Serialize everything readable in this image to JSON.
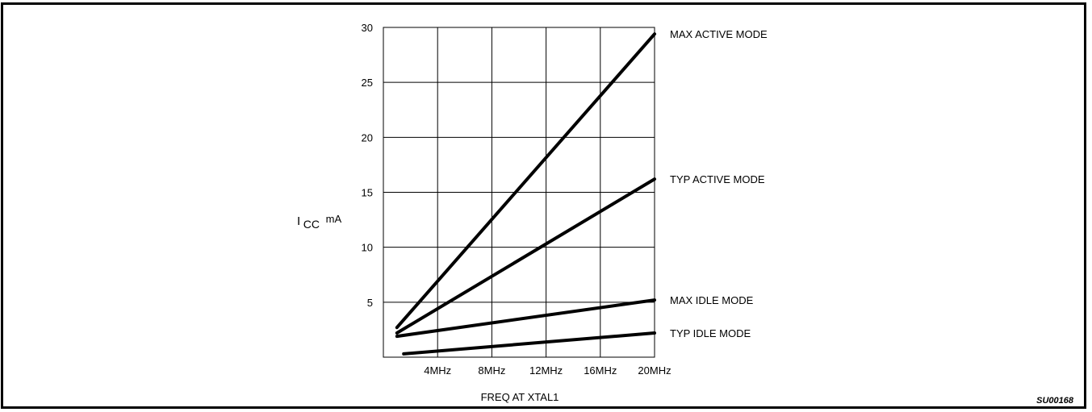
{
  "chart_data": {
    "type": "line",
    "xlabel": "FREQ AT XTAL1",
    "ylabel_main": "I",
    "ylabel_sub": "CC",
    "ylabel_unit": "mA",
    "xlim": [
      0,
      20
    ],
    "ylim": [
      0,
      30
    ],
    "x_ticks": [
      {
        "value": 4,
        "label": "4MHz"
      },
      {
        "value": 8,
        "label": "8MHz"
      },
      {
        "value": 12,
        "label": "12MHz"
      },
      {
        "value": 16,
        "label": "16MHz"
      },
      {
        "value": 20,
        "label": "20MHz"
      }
    ],
    "y_ticks": [
      5,
      10,
      15,
      20,
      25,
      30
    ],
    "grid": true,
    "series": [
      {
        "name": "MAX ACTIVE MODE",
        "x": [
          1,
          20
        ],
        "y": [
          2.7,
          29.4
        ]
      },
      {
        "name": "TYP ACTIVE MODE",
        "x": [
          1,
          20
        ],
        "y": [
          2.2,
          16.2
        ]
      },
      {
        "name": "MAX IDLE MODE",
        "x": [
          1,
          20
        ],
        "y": [
          1.9,
          5.2
        ]
      },
      {
        "name": "TYP IDLE MODE",
        "x": [
          1.5,
          20
        ],
        "y": [
          0.3,
          2.2
        ]
      }
    ],
    "code": "SU00168"
  },
  "colors": {
    "line": "#000000",
    "grid": "#000000"
  }
}
